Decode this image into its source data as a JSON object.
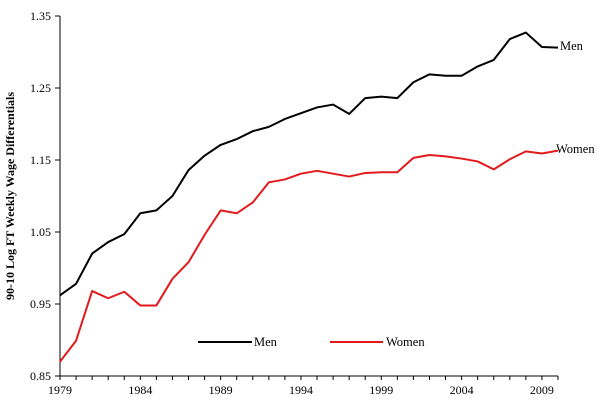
{
  "chart_data": {
    "type": "line",
    "title": "",
    "xlabel": "",
    "ylabel": "90-10 Log FT Weekly Wage Differentials",
    "xlim": [
      1979,
      2010
    ],
    "ylim": [
      0.85,
      1.35
    ],
    "x_ticks": [
      "1979",
      "1984",
      "1989",
      "1994",
      "1999",
      "2004",
      "2009"
    ],
    "y_ticks": [
      "0.85",
      "0.95",
      "1.05",
      "1.15",
      "1.25",
      "1.35"
    ],
    "grid": false,
    "legend_position": "bottom-center",
    "x": [
      1979,
      1980,
      1981,
      1982,
      1983,
      1984,
      1985,
      1986,
      1987,
      1988,
      1989,
      1990,
      1991,
      1992,
      1993,
      1994,
      1995,
      1996,
      1997,
      1998,
      1999,
      2000,
      2001,
      2002,
      2003,
      2004,
      2005,
      2006,
      2007,
      2008,
      2009,
      2010
    ],
    "series": [
      {
        "name": "Men",
        "color": "#000000",
        "values": [
          0.962,
          0.978,
          1.02,
          1.036,
          1.047,
          1.076,
          1.08,
          1.1,
          1.136,
          1.156,
          1.171,
          1.179,
          1.19,
          1.196,
          1.207,
          1.215,
          1.223,
          1.227,
          1.214,
          1.236,
          1.238,
          1.236,
          1.258,
          1.269,
          1.267,
          1.267,
          1.28,
          1.289,
          1.318,
          1.327,
          1.307,
          1.306
        ]
      },
      {
        "name": "Women",
        "color": "#e31a1c",
        "values": [
          0.87,
          0.899,
          0.968,
          0.958,
          0.967,
          0.948,
          0.948,
          0.985,
          1.008,
          1.046,
          1.08,
          1.076,
          1.091,
          1.119,
          1.123,
          1.131,
          1.135,
          1.131,
          1.127,
          1.132,
          1.133,
          1.133,
          1.153,
          1.157,
          1.155,
          1.152,
          1.148,
          1.137,
          1.151,
          1.162,
          1.159,
          1.163
        ]
      }
    ],
    "end_labels": [
      "Men",
      "Women"
    ],
    "legend": [
      "Men",
      "Women"
    ]
  }
}
